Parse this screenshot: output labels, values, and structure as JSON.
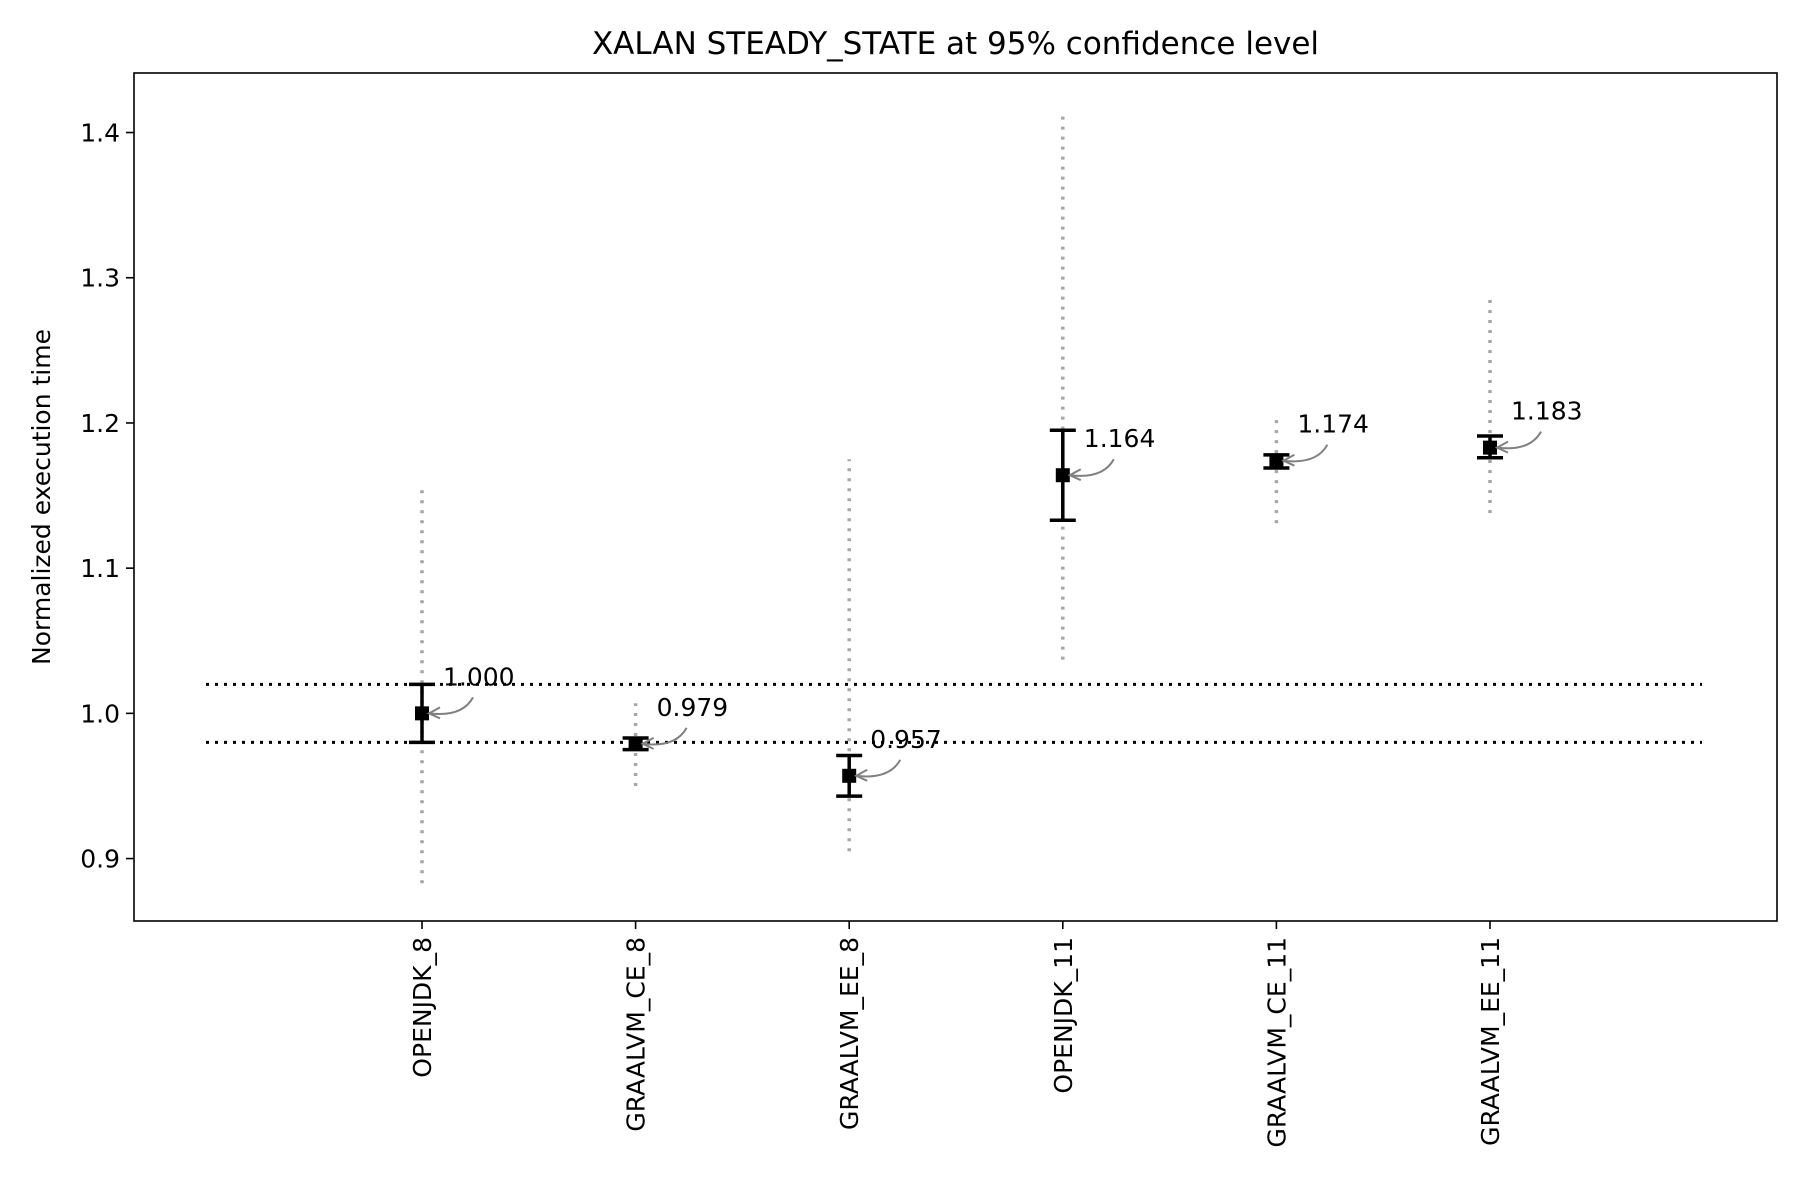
{
  "chart_data": {
    "type": "scatter",
    "title": "XALAN STEADY_STATE at 95% confidence level",
    "xlabel": "",
    "ylabel": "Normalized execution time",
    "ylim": [
      0.857,
      1.441
    ],
    "yticks": [
      "0.9",
      "1.0",
      "1.1",
      "1.2",
      "1.3",
      "1.4"
    ],
    "categories": [
      "OPENJDK_8",
      "GRAALVM_CE_8",
      "GRAALVM_EE_8",
      "OPENJDK_11",
      "GRAALVM_CE_11",
      "GRAALVM_EE_11"
    ],
    "series": [
      {
        "values": [
          1.0,
          0.979,
          0.957,
          1.164,
          1.174,
          1.183
        ],
        "labels": [
          "1.000",
          "0.979",
          "0.957",
          "1.164",
          "1.174",
          "1.183"
        ],
        "ci_low": [
          0.98,
          0.975,
          0.943,
          1.133,
          1.169,
          1.176
        ],
        "ci_high": [
          1.02,
          0.983,
          0.971,
          1.195,
          1.178,
          1.191
        ],
        "range_low": [
          0.883,
          0.95,
          0.905,
          1.037,
          1.131,
          1.138
        ],
        "range_high": [
          1.155,
          1.007,
          1.175,
          1.415,
          1.203,
          1.287
        ]
      }
    ],
    "reference_lines": [
      1.02,
      0.98
    ],
    "grid": false,
    "colors": {
      "marker": "#000000",
      "range": "#a6a6a6",
      "arrow": "#808080",
      "reference": "#000000"
    }
  }
}
